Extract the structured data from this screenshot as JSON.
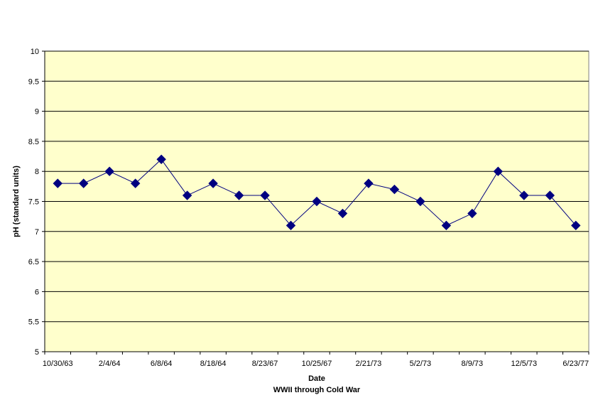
{
  "chart_data": {
    "type": "line",
    "title": "",
    "xlabel": "Date",
    "xsublabel": "WWII through Cold War",
    "ylabel": "pH (standard units)",
    "ylim": [
      5,
      10
    ],
    "y_ticks": [
      5,
      5.5,
      6,
      6.5,
      7,
      7.5,
      8,
      8.5,
      9,
      9.5,
      10
    ],
    "grid": true,
    "legend": "none",
    "plot_background": "#FFFFCC",
    "gridline_color": "#000000",
    "series_color": "#000080",
    "marker": "diamond",
    "x_tick_labels": [
      "10/30/63",
      "2/4/64",
      "6/8/64",
      "8/18/64",
      "8/23/67",
      "10/25/67",
      "2/21/73",
      "5/2/73",
      "8/9/73",
      "12/5/73",
      "6/23/77"
    ],
    "series": [
      {
        "values": [
          7.8,
          7.8,
          8.0,
          7.8,
          8.2,
          7.6,
          7.8,
          7.6,
          7.6,
          7.1,
          7.5,
          7.3,
          7.8,
          7.7,
          7.5,
          7.1,
          7.3,
          8.0,
          7.6,
          7.6,
          7.1
        ]
      }
    ]
  }
}
